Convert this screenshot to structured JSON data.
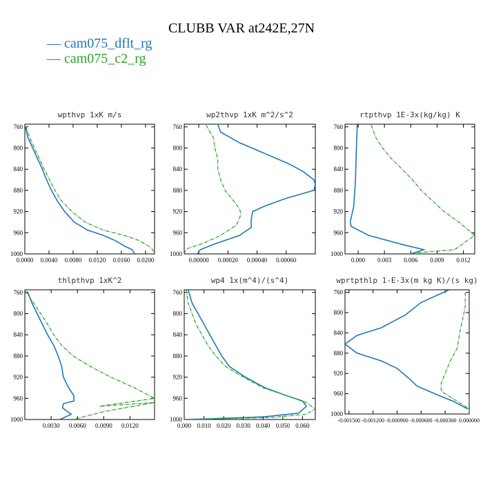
{
  "header": {
    "title": "CLUBB VAR at242E,27N",
    "legend": [
      {
        "label": "cam075_dflt_rg",
        "color": "#1f77b4"
      },
      {
        "label": "cam075_c2_rg",
        "color": "#2ca02c"
      }
    ]
  },
  "chart_data": [
    {
      "type": "line",
      "title": "wpthvp  1xK m/s",
      "xlim": [
        0,
        0.0215
      ],
      "ylim": [
        1000,
        755
      ],
      "grid": false,
      "xticks": [
        0,
        0.004,
        0.008,
        0.012,
        0.016,
        0.02
      ],
      "xticklabels": [
        "0.0000",
        "0.0040",
        "0.0080",
        "0.0120",
        "0.0160",
        "0.0200"
      ],
      "yticks": [
        760,
        800,
        840,
        880,
        920,
        960,
        1000
      ],
      "yticklabels": [
        "760",
        "800",
        "840",
        "880",
        "920",
        "960",
        "1000"
      ],
      "series": [
        {
          "name": "cam075_dflt_rg",
          "color": "#1f77b4",
          "dashed": false,
          "points": [
            [
              0.0001,
              760
            ],
            [
              0.0005,
              780
            ],
            [
              0.0013,
              800
            ],
            [
              0.0021,
              820
            ],
            [
              0.0029,
              840
            ],
            [
              0.0036,
              860
            ],
            [
              0.0044,
              880
            ],
            [
              0.0054,
              900
            ],
            [
              0.0066,
              920
            ],
            [
              0.0082,
              940
            ],
            [
              0.0104,
              955
            ],
            [
              0.013,
              965
            ],
            [
              0.015,
              975
            ],
            [
              0.0165,
              985
            ],
            [
              0.0178,
              992
            ],
            [
              0.0182,
              1000
            ]
          ]
        },
        {
          "name": "cam075_c2_rg",
          "color": "#2ca02c",
          "dashed": true,
          "points": [
            [
              0.0002,
              760
            ],
            [
              0.0008,
              780
            ],
            [
              0.0016,
              800
            ],
            [
              0.0024,
              820
            ],
            [
              0.0032,
              840
            ],
            [
              0.0041,
              860
            ],
            [
              0.005,
              880
            ],
            [
              0.0061,
              900
            ],
            [
              0.0078,
              920
            ],
            [
              0.01,
              940
            ],
            [
              0.013,
              955
            ],
            [
              0.0165,
              965
            ],
            [
              0.019,
              975
            ],
            [
              0.0205,
              985
            ],
            [
              0.0212,
              992
            ],
            [
              0.0214,
              997
            ]
          ]
        }
      ]
    },
    {
      "type": "line",
      "title": "wp2thvp  1xK m^2/s^2",
      "xlim": [
        -0.0001,
        0.0008
      ],
      "ylim": [
        1000,
        755
      ],
      "grid": false,
      "xticks": [
        0,
        0.0002,
        0.0004,
        0.0006
      ],
      "xticklabels": [
        "0.00000",
        "0.00020",
        "0.00040",
        "0.00060"
      ],
      "yticks": [
        760,
        800,
        840,
        880,
        920,
        960,
        1000
      ],
      "yticklabels": [
        "760",
        "800",
        "840",
        "880",
        "920",
        "960",
        "1000"
      ],
      "series": [
        {
          "name": "cam075_dflt_rg",
          "color": "#1f77b4",
          "dashed": false,
          "points": [
            [
              0.00013,
              755
            ],
            [
              0.00015,
              770
            ],
            [
              0.00028,
              790
            ],
            [
              0.00045,
              810
            ],
            [
              0.00062,
              830
            ],
            [
              0.00072,
              845
            ],
            [
              0.00079,
              860
            ],
            [
              0.0008,
              868
            ],
            [
              0.00079,
              880
            ],
            [
              0.0006,
              895
            ],
            [
              0.00045,
              910
            ],
            [
              0.00037,
              920
            ],
            [
              0.00036,
              935
            ],
            [
              0.00036,
              950
            ],
            [
              0.00028,
              965
            ],
            [
              0.0001,
              982
            ],
            [
              1e-05,
              992
            ],
            [
              -1e-05,
              1000
            ]
          ]
        },
        {
          "name": "cam075_c2_rg",
          "color": "#2ca02c",
          "dashed": true,
          "points": [
            [
              5e-05,
              757
            ],
            [
              0.0001,
              780
            ],
            [
              0.00011,
              800
            ],
            [
              0.00013,
              820
            ],
            [
              0.00013,
              840
            ],
            [
              0.00015,
              860
            ],
            [
              0.00018,
              880
            ],
            [
              0.00024,
              900
            ],
            [
              0.00028,
              915
            ],
            [
              0.00029,
              925
            ],
            [
              0.00026,
              945
            ],
            [
              0.00015,
              965
            ],
            [
              3e-05,
              980
            ],
            [
              -8e-05,
              990
            ],
            [
              -0.0001,
              998
            ]
          ]
        }
      ]
    },
    {
      "type": "line",
      "title": "rtpthvp  1E-3x(kg/kg) K",
      "xlim": [
        -0.0015,
        0.0133
      ],
      "ylim": [
        1000,
        755
      ],
      "grid": false,
      "xticks": [
        0,
        0.003,
        0.006,
        0.009,
        0.012
      ],
      "xticklabels": [
        "0.000",
        "0.003",
        "0.006",
        "0.009",
        "0.012"
      ],
      "yticks": [
        760,
        800,
        840,
        880,
        920,
        960,
        1000
      ],
      "yticklabels": [
        "760",
        "800",
        "840",
        "880",
        "920",
        "960",
        "1000"
      ],
      "series": [
        {
          "name": "cam075_dflt_rg",
          "color": "#1f77b4",
          "dashed": false,
          "points": [
            [
              -0.0001,
              755
            ],
            [
              -0.0002,
              800
            ],
            [
              -0.0003,
              860
            ],
            [
              -0.0005,
              910
            ],
            [
              -0.0009,
              940
            ],
            [
              -0.0008,
              948
            ],
            [
              0.0012,
              965
            ],
            [
              0.005,
              982
            ],
            [
              0.0075,
              992
            ],
            [
              0.006,
              1000
            ]
          ]
        },
        {
          "name": "cam075_c2_rg",
          "color": "#2ca02c",
          "dashed": true,
          "points": [
            [
              0.0015,
              757
            ],
            [
              0.002,
              780
            ],
            [
              0.0028,
              800
            ],
            [
              0.0038,
              820
            ],
            [
              0.005,
              840
            ],
            [
              0.0062,
              860
            ],
            [
              0.0072,
              880
            ],
            [
              0.0085,
              900
            ],
            [
              0.0098,
              920
            ],
            [
              0.0115,
              940
            ],
            [
              0.0133,
              965
            ],
            [
              0.011,
              992
            ],
            [
              0.0065,
              998
            ]
          ]
        }
      ]
    },
    {
      "type": "line",
      "title": "thlpthvp  1xK^2",
      "xlim": [
        0,
        0.0148
      ],
      "ylim": [
        1000,
        755
      ],
      "grid": false,
      "xticks": [
        0.003,
        0.006,
        0.009,
        0.012
      ],
      "xticklabels": [
        "0.0030",
        "0.0060",
        "0.0090",
        "0.0120"
      ],
      "yticks": [
        760,
        800,
        840,
        880,
        920,
        960,
        1000
      ],
      "yticklabels": [
        "760",
        "800",
        "840",
        "880",
        "920",
        "960",
        "1000"
      ],
      "series": [
        {
          "name": "cam075_dflt_rg",
          "color": "#1f77b4",
          "dashed": false,
          "points": [
            [
              0.0003,
              758
            ],
            [
              0.0008,
              780
            ],
            [
              0.0014,
              800
            ],
            [
              0.002,
              820
            ],
            [
              0.0026,
              840
            ],
            [
              0.0033,
              860
            ],
            [
              0.0038,
              880
            ],
            [
              0.0042,
              900
            ],
            [
              0.0044,
              920
            ],
            [
              0.005,
              940
            ],
            [
              0.0056,
              955
            ],
            [
              0.0056,
              965
            ],
            [
              0.0044,
              970
            ],
            [
              0.0043,
              978
            ],
            [
              0.0053,
              990
            ],
            [
              0.004,
              1000
            ]
          ]
        },
        {
          "name": "cam075_c2_rg",
          "color": "#2ca02c",
          "dashed": true,
          "points": [
            [
              0.0001,
              758
            ],
            [
              0.001,
              780
            ],
            [
              0.0018,
              800
            ],
            [
              0.0026,
              820
            ],
            [
              0.0033,
              840
            ],
            [
              0.0042,
              860
            ],
            [
              0.0055,
              880
            ],
            [
              0.0075,
              900
            ],
            [
              0.0098,
              920
            ],
            [
              0.0125,
              940
            ],
            [
              0.0148,
              960
            ],
            [
              0.0085,
              975
            ],
            [
              0.0148,
              968
            ],
            [
              0.009,
              985
            ],
            [
              0.0055,
              1000
            ]
          ]
        }
      ]
    },
    {
      "type": "line",
      "title": "wp4  1x(m^4)/(s^4)",
      "xlim": [
        0,
        0.0665
      ],
      "ylim": [
        1000,
        755
      ],
      "grid": false,
      "xticks": [
        0,
        0.01,
        0.02,
        0.03,
        0.04,
        0.05,
        0.06
      ],
      "xticklabels": [
        "0.000",
        "0.010",
        "0.020",
        "0.030",
        "0.040",
        "0.050",
        "0.060"
      ],
      "yticks": [
        760,
        800,
        840,
        880,
        920,
        960,
        1000
      ],
      "yticklabels": [
        "760",
        "800",
        "840",
        "880",
        "920",
        "960",
        "1000"
      ],
      "series": [
        {
          "name": "cam075_dflt_rg",
          "color": "#1f77b4",
          "dashed": false,
          "points": [
            [
              0.002,
              755
            ],
            [
              0.004,
              780
            ],
            [
              0.007,
              800
            ],
            [
              0.01,
              820
            ],
            [
              0.013,
              840
            ],
            [
              0.016,
              860
            ],
            [
              0.019,
              880
            ],
            [
              0.023,
              900
            ],
            [
              0.031,
              920
            ],
            [
              0.041,
              940
            ],
            [
              0.052,
              955
            ],
            [
              0.06,
              965
            ],
            [
              0.062,
              975
            ],
            [
              0.058,
              988
            ],
            [
              0.04,
              995
            ],
            [
              0.01,
              999
            ],
            [
              0,
              1000
            ]
          ]
        },
        {
          "name": "cam075_c2_rg",
          "color": "#2ca02c",
          "dashed": true,
          "points": [
            [
              0.001,
              755
            ],
            [
              0.002,
              780
            ],
            [
              0.004,
              800
            ],
            [
              0.006,
              820
            ],
            [
              0.009,
              840
            ],
            [
              0.012,
              860
            ],
            [
              0.016,
              880
            ],
            [
              0.021,
              900
            ],
            [
              0.03,
              920
            ],
            [
              0.04,
              940
            ],
            [
              0.052,
              955
            ],
            [
              0.062,
              968
            ],
            [
              0.0665,
              980
            ],
            [
              0.062,
              990
            ],
            [
              0.045,
              996
            ],
            [
              0.015,
              999
            ],
            [
              0.001,
              1000
            ]
          ]
        }
      ]
    },
    {
      "type": "line",
      "title": "wprtpthlp  1-E-3x(m kg K)/(s kg)",
      "xlim": [
        -0.00155,
        0.0
      ],
      "ylim": [
        1000,
        755
      ],
      "grid": false,
      "xticks": [
        -0.0015,
        -0.0012,
        -0.0009,
        -0.0006,
        -0.0003,
        0
      ],
      "xticklabels": [
        "-0.001500",
        "-0.001200",
        "-0.000900",
        "-0.000600",
        "-0.000300",
        "0.000000"
      ],
      "yticks": [
        760,
        800,
        840,
        880,
        920,
        960,
        1000
      ],
      "yticklabels": [
        "760",
        "800",
        "840",
        "880",
        "920",
        "960",
        "1000"
      ],
      "series": [
        {
          "name": "cam075_dflt_rg",
          "color": "#1f77b4",
          "dashed": false,
          "points": [
            [
              -0.00025,
              755
            ],
            [
              -0.0006,
              780
            ],
            [
              -0.0008,
              805
            ],
            [
              -0.0011,
              830
            ],
            [
              -0.0014,
              845
            ],
            [
              -0.00155,
              862
            ],
            [
              -0.0014,
              880
            ],
            [
              -0.0011,
              895
            ],
            [
              -0.0009,
              910
            ],
            [
              -0.00075,
              930
            ],
            [
              -0.00065,
              945
            ],
            [
              -0.0004,
              962
            ],
            [
              -0.0002,
              975
            ],
            [
              -2e-05,
              990
            ]
          ]
        },
        {
          "name": "cam075_c2_rg",
          "color": "#2ca02c",
          "dashed": true,
          "points": [
            [
              -5e-05,
              760
            ],
            [
              -5e-05,
              790
            ],
            [
              -0.00012,
              840
            ],
            [
              -0.00015,
              870
            ],
            [
              -0.00025,
              900
            ],
            [
              -0.0003,
              920
            ],
            [
              -0.00035,
              940
            ],
            [
              -0.00035,
              955
            ],
            [
              -0.0002,
              970
            ],
            [
              -5e-05,
              985
            ],
            [
              0,
              990
            ]
          ]
        }
      ]
    }
  ]
}
